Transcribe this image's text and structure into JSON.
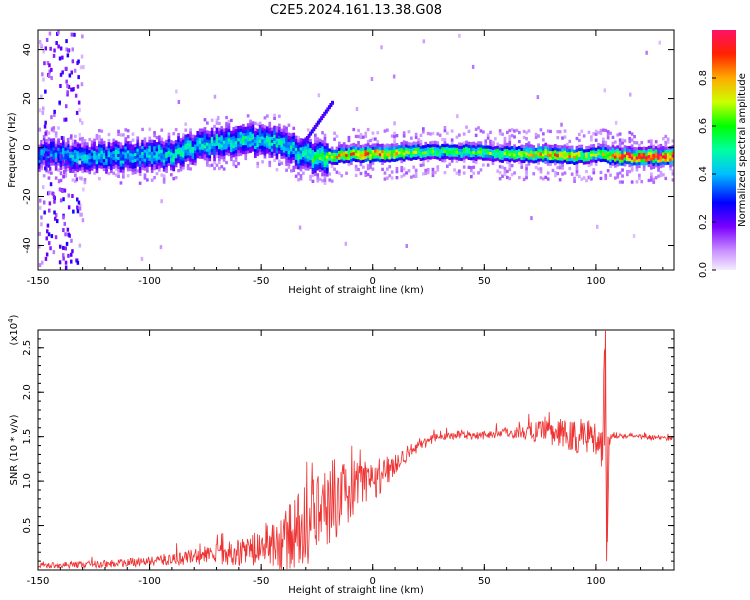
{
  "title": "C2E5.2024.161.13.38.G08",
  "colors": {
    "line": "#ee3333",
    "colormap": [
      "#f0e0ff",
      "#c890ff",
      "#8800ff",
      "#0000ff",
      "#00bfff",
      "#00ff80",
      "#00ff00",
      "#ccff00",
      "#ffaa00",
      "#ff2200",
      "#ff1155"
    ]
  },
  "chart_data": [
    {
      "type": "heatmap",
      "title": "C2E5.2024.161.13.38.G08",
      "xlabel": "Height of straight line (km)",
      "ylabel": "Frequency (Hz)",
      "xlim": [
        -150,
        135
      ],
      "ylim": [
        -50,
        48
      ],
      "x_ticks": [
        "-150",
        "-100",
        "-50",
        "0",
        "50",
        "100"
      ],
      "y_ticks": [
        "-40",
        "-20",
        "0",
        "20",
        "40"
      ],
      "colorbar": {
        "label": "Normalized spectral amplitude",
        "range": [
          0,
          1
        ],
        "ticks": [
          "0.0",
          "0.2",
          "0.4",
          "0.6",
          "0.8"
        ]
      },
      "ridge": {
        "description_points_x": [
          -150,
          -130,
          -110,
          -90,
          -75,
          -60,
          -50,
          -40,
          -30,
          -20,
          -10,
          0,
          20,
          40,
          60,
          80,
          90,
          100,
          110,
          120,
          135
        ],
        "freq": [
          -2,
          -3,
          -3,
          -2,
          2,
          3,
          4,
          2,
          -3,
          -3,
          -2,
          -2,
          -1,
          -1,
          -2,
          -2,
          -3,
          -2,
          -3,
          -3,
          -3
        ],
        "amplitude": [
          0.35,
          0.4,
          0.4,
          0.45,
          0.45,
          0.45,
          0.45,
          0.45,
          0.5,
          0.65,
          0.8,
          0.85,
          0.6,
          0.55,
          0.6,
          0.8,
          0.7,
          0.6,
          0.9,
          0.95,
          0.95
        ]
      }
    },
    {
      "type": "line",
      "xlabel": "Height of straight line (km)",
      "ylabel": "SNR (10 * v/v)",
      "y_multiplier": "(x10",
      "y_multiplier_exp": "4",
      "y_multiplier_close": ")",
      "xlim": [
        -150,
        135
      ],
      "ylim": [
        0,
        2.7
      ],
      "x_ticks": [
        "-150",
        "-100",
        "-50",
        "0",
        "50",
        "100"
      ],
      "y_ticks": [
        "0.5",
        "1.0",
        "1.5",
        "2.0",
        "2.5"
      ],
      "series": [
        {
          "x": [
            -150,
            -130,
            -110,
            -100,
            -90,
            -80,
            -70,
            -60,
            -50,
            -40,
            -35,
            -30,
            -25,
            -20,
            -15,
            -10,
            -5,
            0,
            5,
            10,
            15,
            20,
            25,
            30,
            40,
            50,
            60,
            70,
            80,
            90,
            95,
            100,
            103,
            104,
            105,
            106,
            108,
            110,
            120,
            135
          ],
          "y": [
            0.05,
            0.06,
            0.08,
            0.1,
            0.12,
            0.15,
            0.18,
            0.2,
            0.25,
            0.3,
            0.4,
            0.5,
            0.6,
            0.7,
            0.8,
            0.9,
            0.95,
            1.0,
            1.1,
            1.2,
            1.3,
            1.4,
            1.45,
            1.5,
            1.52,
            1.52,
            1.55,
            1.55,
            1.55,
            1.5,
            1.5,
            1.5,
            1.4,
            2.7,
            0.1,
            1.5,
            1.5,
            1.52,
            1.5,
            1.48
          ],
          "noise": [
            0.03,
            0.04,
            0.05,
            0.05,
            0.08,
            0.1,
            0.12,
            0.15,
            0.2,
            0.35,
            0.45,
            0.5,
            0.45,
            0.45,
            0.4,
            0.35,
            0.3,
            0.25,
            0.2,
            0.15,
            0.1,
            0.08,
            0.06,
            0.05,
            0.05,
            0.05,
            0.06,
            0.1,
            0.15,
            0.2,
            0.25,
            0.2,
            0.3,
            0,
            0,
            0.1,
            0.05,
            0.03,
            0.03,
            0.03
          ]
        }
      ]
    }
  ]
}
